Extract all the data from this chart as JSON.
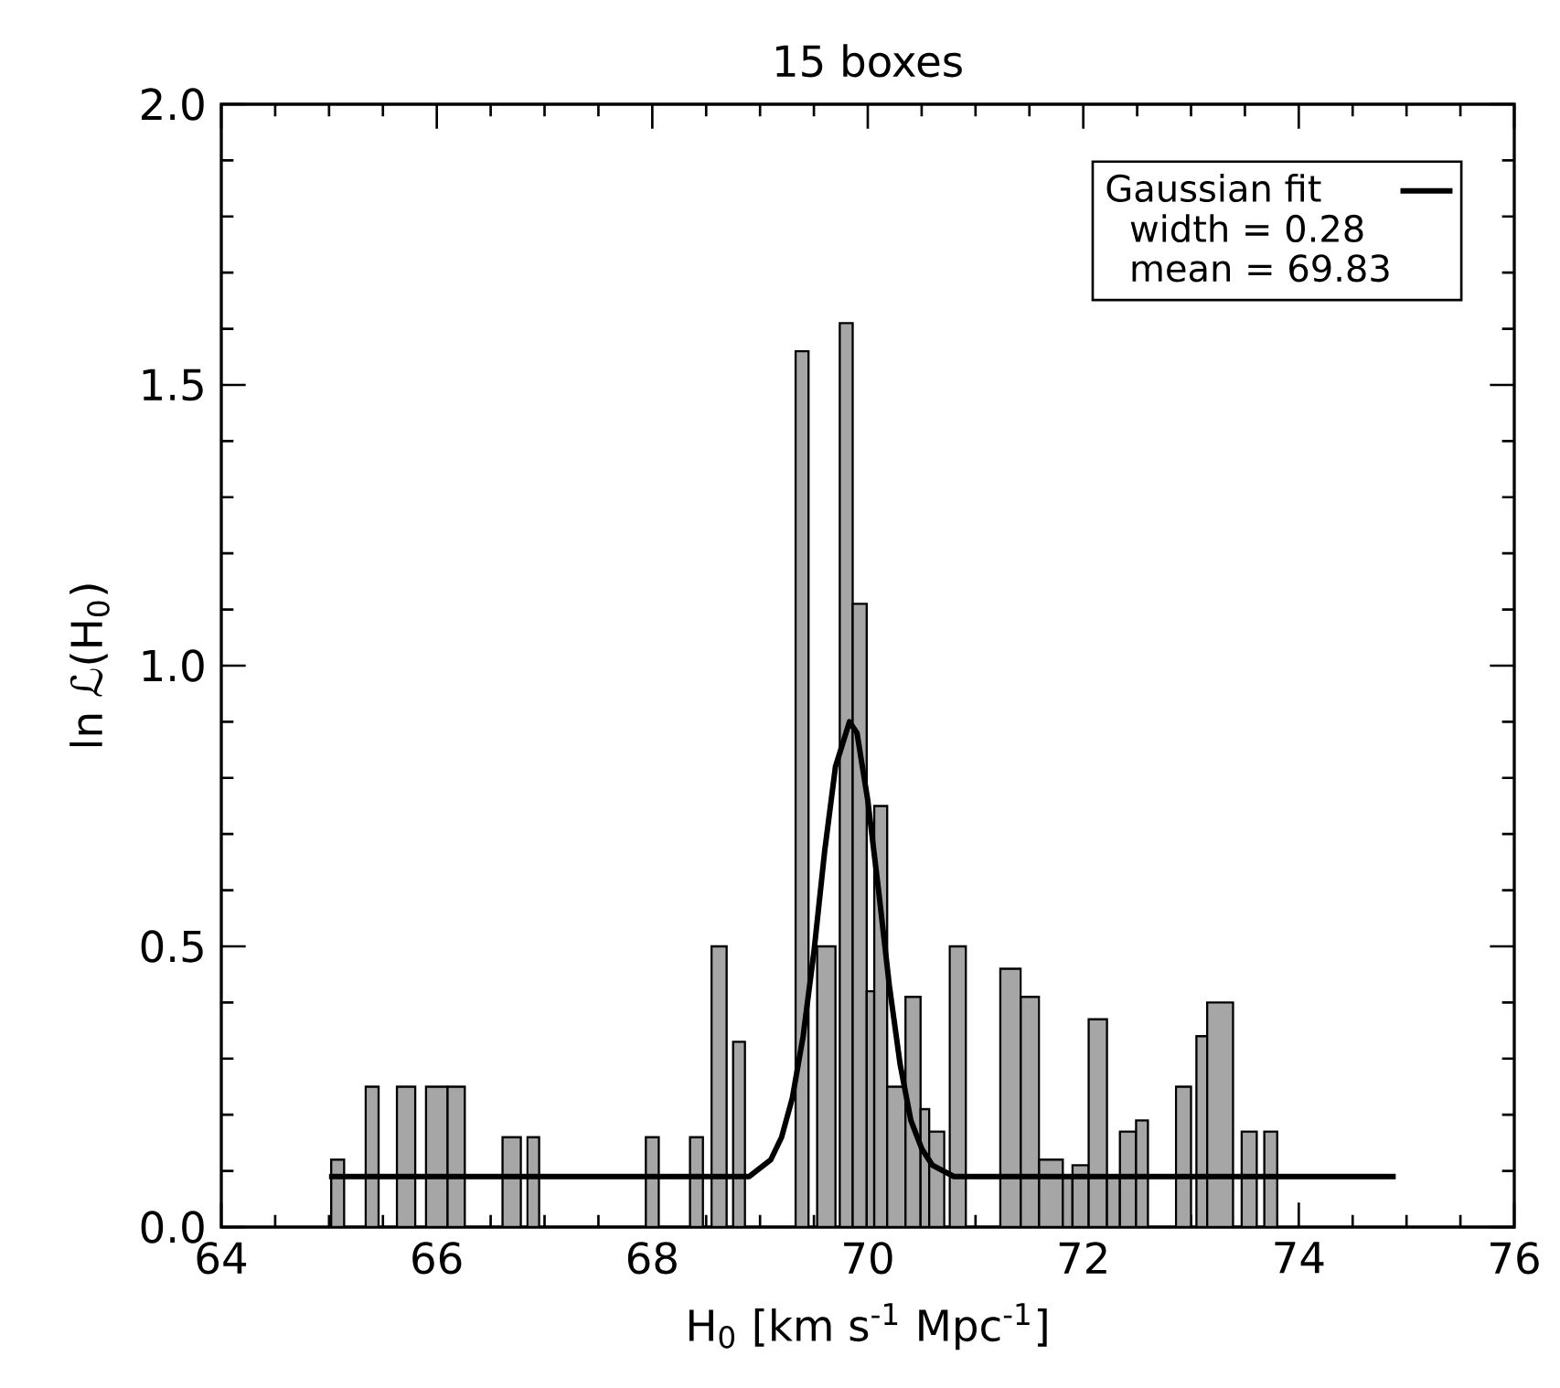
{
  "chart_data": {
    "type": "histogram",
    "title": "15 boxes",
    "xlabel": "H$_{0}$ [km s$^{-1}$ Mpc$^{-1}$]",
    "ylabel": "ln ℒ(H$_{0}$)",
    "xlim": [
      64,
      76
    ],
    "ylim": [
      0,
      2.0
    ],
    "xticks": [
      64,
      66,
      68,
      70,
      72,
      74,
      76
    ],
    "yticks": [
      {
        "value": 0,
        "label": "0.0"
      },
      {
        "value": 0.5,
        "label": "0.5"
      },
      {
        "value": 1.0,
        "label": "1.0"
      },
      {
        "value": 1.5,
        "label": "1.5"
      },
      {
        "value": 2.0,
        "label": "2.0"
      }
    ],
    "legend": "top right",
    "grid": false,
    "annotations": [
      "width = 0.28",
      "mean = 69.83"
    ],
    "series": [
      {
        "color": "#a6a6a6",
        "bins": [
          65.02,
          65.14,
          65.34,
          65.46,
          65.63,
          65.8,
          65.9,
          66.1,
          66.26,
          66.61,
          66.78,
          66.84,
          66.95,
          67.94,
          68.06,
          68.35,
          68.47,
          68.55,
          68.69,
          68.75,
          68.86,
          69.33,
          69.45,
          69.53,
          69.7,
          69.74,
          69.86,
          69.99,
          70.06,
          70.18,
          70.35,
          70.49,
          70.57,
          70.71,
          70.76,
          70.91,
          71.23,
          71.42,
          71.59,
          71.81,
          71.9,
          72.05,
          72.22,
          72.34,
          72.49,
          72.6,
          72.86,
          73.0,
          73.05,
          73.15,
          73.39,
          73.47,
          73.61,
          73.68,
          73.8
        ],
        "values": [
          0.12,
          0,
          0.25,
          0,
          0.25,
          0,
          0.25,
          0.25,
          0,
          0.16,
          0,
          0.16,
          0,
          0.16,
          0,
          0.16,
          0,
          0.5,
          0,
          0.33,
          0,
          1.56,
          0,
          0.5,
          0,
          1.61,
          1.11,
          0.42,
          0.75,
          0.25,
          0.41,
          0.21,
          0.17,
          0,
          0.5,
          0,
          0.46,
          0.41,
          0.12,
          0.09,
          0.11,
          0.37,
          0.09,
          0.17,
          0.19,
          0,
          0.25,
          0,
          0.34,
          0.4,
          0,
          0.17,
          0,
          0.17
        ]
      },
      {
        "type": "line",
        "name": "Gaussian fit",
        "color": "#000000",
        "x": [
          65.0,
          68.8,
          68.9,
          69.1,
          69.2,
          69.3,
          69.4,
          69.5,
          69.6,
          69.7,
          69.83,
          69.9,
          70.0,
          70.1,
          70.2,
          70.3,
          70.4,
          70.5,
          70.6,
          70.8,
          74.9
        ],
        "values": [
          0.09,
          0.09,
          0.09,
          0.12,
          0.16,
          0.23,
          0.34,
          0.49,
          0.67,
          0.82,
          0.9,
          0.88,
          0.76,
          0.6,
          0.43,
          0.29,
          0.19,
          0.14,
          0.11,
          0.09,
          0.09
        ]
      }
    ]
  }
}
